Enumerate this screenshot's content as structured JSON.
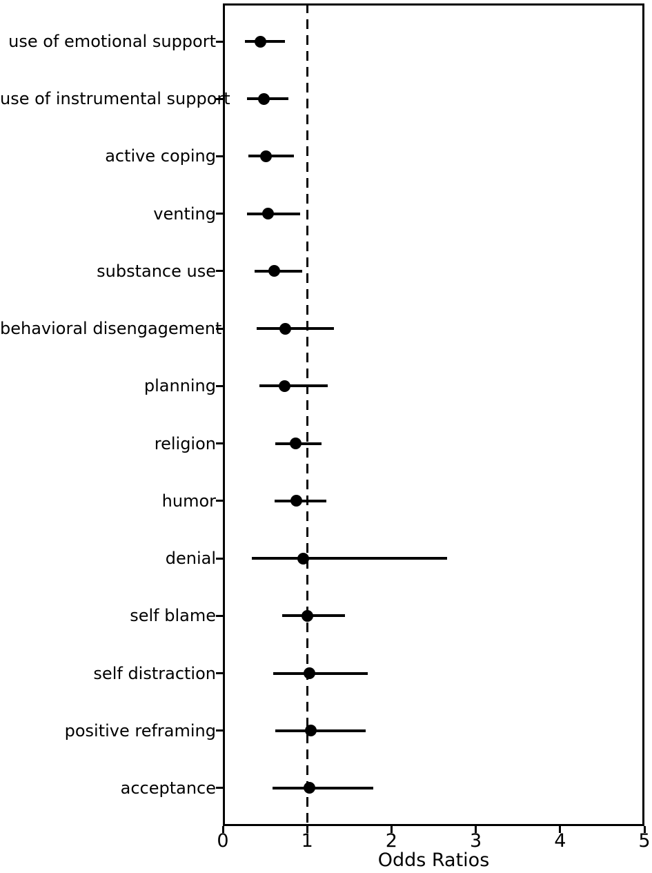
{
  "figure": {
    "background_color": "#ffffff",
    "foreground_color": "#000000"
  },
  "chart_data": {
    "type": "scatter",
    "subtype": "forest-plot",
    "title": "",
    "xlabel": "Odds Ratios",
    "ylabel": "",
    "xlim": [
      0,
      5
    ],
    "xticks": [
      "0",
      "1",
      "2",
      "3",
      "4",
      "5"
    ],
    "grid": false,
    "legend": null,
    "reference_line": {
      "x": 1,
      "style": "dashed",
      "color": "#000000"
    },
    "marker": {
      "shape": "circle",
      "color": "#000000",
      "name": "odds-ratio-point"
    },
    "error_bars": {
      "style": "horizontal-line",
      "caps": false,
      "color": "#000000"
    },
    "categories": [
      "use of emotional support",
      "use of instrumental support",
      "active coping",
      "venting",
      "substance use",
      "behavioral disengagement",
      "planning",
      "religion",
      "humor",
      "denial",
      "self blame",
      "self distraction",
      "positive reframing",
      "acceptance"
    ],
    "series": [
      {
        "name": "odds_ratio",
        "values": [
          0.45,
          0.49,
          0.51,
          0.54,
          0.61,
          0.74,
          0.73,
          0.86,
          0.87,
          0.95,
          1.0,
          1.03,
          1.04,
          1.03
        ]
      },
      {
        "name": "ci_lower",
        "values": [
          0.26,
          0.29,
          0.3,
          0.29,
          0.38,
          0.4,
          0.43,
          0.62,
          0.61,
          0.34,
          0.7,
          0.6,
          0.62,
          0.59
        ]
      },
      {
        "name": "ci_upper",
        "values": [
          0.74,
          0.78,
          0.84,
          0.92,
          0.94,
          1.32,
          1.24,
          1.17,
          1.23,
          2.66,
          1.45,
          1.72,
          1.69,
          1.78
        ]
      }
    ]
  }
}
